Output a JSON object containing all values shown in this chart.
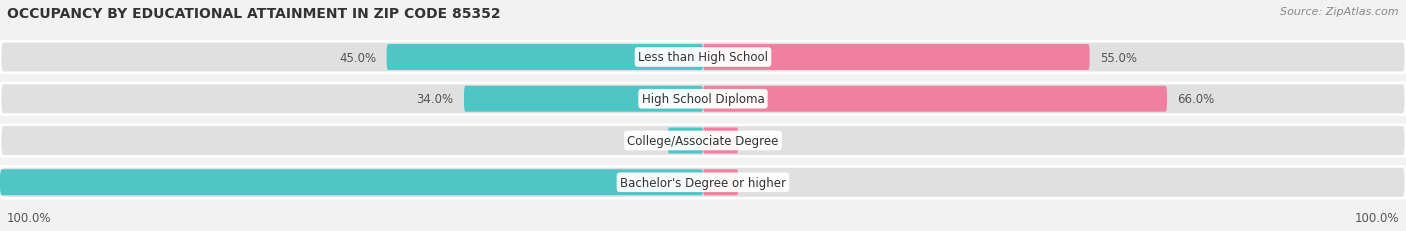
{
  "title": "OCCUPANCY BY EDUCATIONAL ATTAINMENT IN ZIP CODE 85352",
  "source": "Source: ZipAtlas.com",
  "categories": [
    "Less than High School",
    "High School Diploma",
    "College/Associate Degree",
    "Bachelor's Degree or higher"
  ],
  "owner_values": [
    45.0,
    34.0,
    0.0,
    100.0
  ],
  "renter_values": [
    55.0,
    66.0,
    0.0,
    0.0
  ],
  "owner_color": "#4ec6c6",
  "renter_color": "#f07fa0",
  "background_color": "#f2f2f2",
  "bar_bg_color": "#e0e0e0",
  "title_fontsize": 10,
  "source_fontsize": 8,
  "label_fontsize": 8.5,
  "cat_fontsize": 8.5,
  "legend_fontsize": 8.5,
  "xlim": [
    -100,
    100
  ],
  "bar_height": 0.62
}
